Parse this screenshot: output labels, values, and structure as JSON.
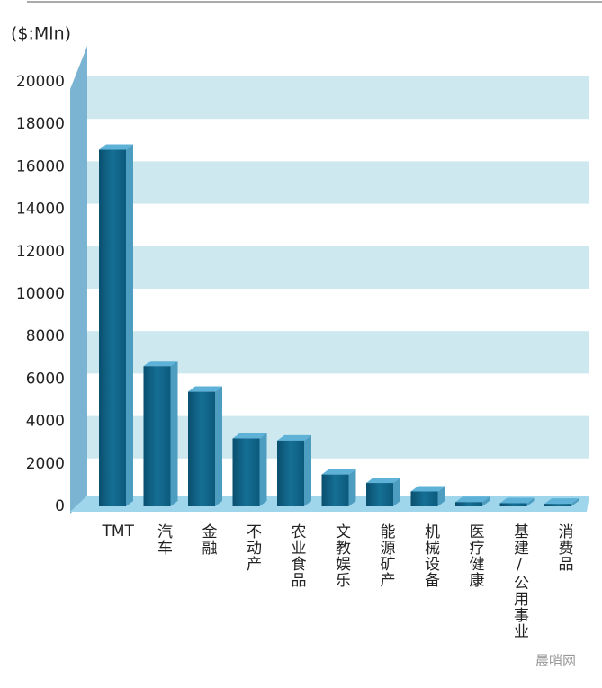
{
  "chart_data": {
    "type": "bar",
    "y_label": "($:Mln)",
    "categories": [
      "TMT",
      "汽车",
      "金融",
      "不动产",
      "农业食品",
      "文教娱乐",
      "能源矿产",
      "机械设备",
      "医疗健康",
      "基建/公用事业",
      "消费品"
    ],
    "values": [
      16800,
      6600,
      5400,
      3200,
      3100,
      1500,
      1100,
      700,
      200,
      150,
      120
    ],
    "color": "#0f6a8e",
    "ylim": [
      0,
      20000
    ],
    "yticks": [
      0,
      2000,
      4000,
      6000,
      8000,
      10000,
      12000,
      14000,
      16000,
      18000,
      20000
    ],
    "watermark": "晨哨网"
  }
}
